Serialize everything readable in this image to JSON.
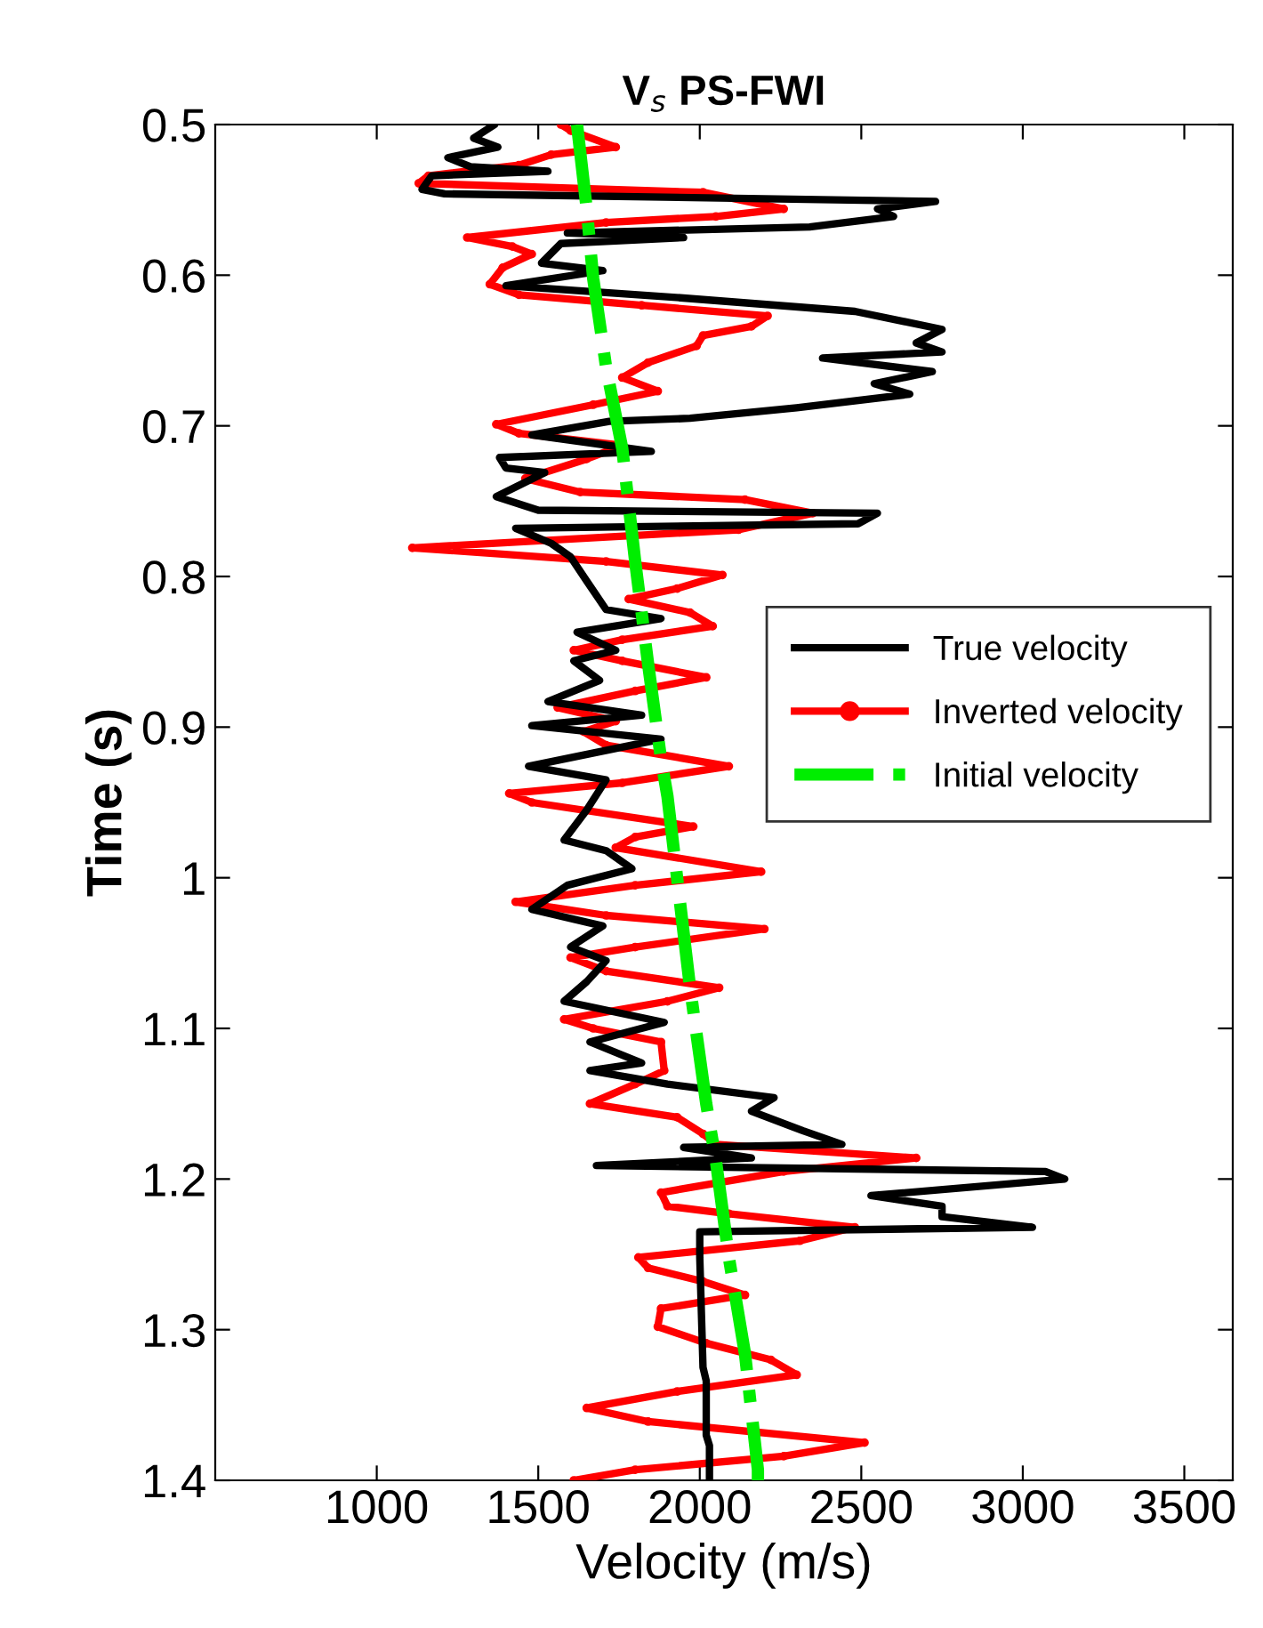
{
  "chart_data": {
    "type": "line",
    "title": "V$_{s}$ PS-FWI",
    "xlabel": "Velocity (m/s)",
    "ylabel": "Time (s)",
    "xlim": [
      500,
      3650
    ],
    "xticks": [
      1000,
      1500,
      2000,
      2500,
      3000,
      3500
    ],
    "ylim": [
      1.4,
      0.5
    ],
    "yticks": [
      0.5,
      0.6,
      0.7,
      0.8,
      0.9,
      1,
      1.1,
      1.2,
      1.3,
      1.4
    ],
    "grid": false,
    "legend": "right",
    "series": [
      {
        "name": "True velocity",
        "color": "#000000",
        "line_style": "solid",
        "marker": "none",
        "x": [
          1365,
          1300,
          1375,
          1220,
          1290,
          1530,
          1170,
          1140,
          1210,
          2730,
          2550,
          2600,
          2340,
          1590,
          1950,
          1570,
          1510,
          1700,
          1400,
          1940,
          2480,
          2750,
          2670,
          2750,
          2380,
          2720,
          2540,
          2650,
          2300,
          1970,
          1720,
          1480,
          1850,
          1380,
          1400,
          1520,
          1370,
          1500,
          2550,
          2490,
          1430,
          1540,
          1600,
          1650,
          1710,
          1880,
          1620,
          1740,
          1610,
          1690,
          1530,
          1820,
          1480,
          1880,
          1470,
          1710,
          1650,
          1580,
          1710,
          1790,
          1590,
          1480,
          1700,
          1600,
          1710,
          1650,
          1580,
          1890,
          1660,
          1820,
          1660,
          1900,
          2230,
          2160,
          2320,
          2440,
          1950,
          2160,
          1680,
          3070,
          3130,
          2530,
          2750,
          2750,
          3030,
          2000,
          2000,
          2010,
          2020,
          2020,
          2030,
          2030
        ],
        "values": [
          0.5,
          0.509,
          0.515,
          0.522,
          0.528,
          0.531,
          0.534,
          0.543,
          0.546,
          0.551,
          0.556,
          0.561,
          0.568,
          0.572,
          0.575,
          0.579,
          0.592,
          0.597,
          0.607,
          0.615,
          0.624,
          0.636,
          0.645,
          0.651,
          0.655,
          0.664,
          0.672,
          0.679,
          0.688,
          0.695,
          0.697,
          0.706,
          0.717,
          0.721,
          0.728,
          0.731,
          0.747,
          0.756,
          0.758,
          0.765,
          0.768,
          0.778,
          0.787,
          0.803,
          0.822,
          0.828,
          0.837,
          0.849,
          0.856,
          0.869,
          0.883,
          0.892,
          0.899,
          0.908,
          0.926,
          0.935,
          0.955,
          0.975,
          0.982,
          0.994,
          1.005,
          1.021,
          1.032,
          1.046,
          1.055,
          1.069,
          1.082,
          1.096,
          1.109,
          1.123,
          1.128,
          1.137,
          1.146,
          1.155,
          1.168,
          1.177,
          1.179,
          1.186,
          1.191,
          1.195,
          1.2,
          1.211,
          1.218,
          1.225,
          1.232,
          1.235,
          1.252,
          1.325,
          1.334,
          1.37,
          1.377,
          1.4
        ]
      },
      {
        "name": "Inverted velocity",
        "color": "#ff0000",
        "line_style": "solid",
        "marker": "circle",
        "x": [
          1570,
          1600,
          1740,
          1540,
          1440,
          1160,
          1130,
          2010,
          2260,
          2050,
          1710,
          1280,
          1420,
          1480,
          1390,
          1350,
          1440,
          1820,
          2210,
          2160,
          2010,
          1990,
          1840,
          1760,
          1870,
          1670,
          1370,
          1440,
          1760,
          1650,
          1460,
          1630,
          2140,
          2350,
          2120,
          1110,
          1710,
          2070,
          1930,
          1780,
          1970,
          2040,
          1760,
          1610,
          1760,
          2020,
          1800,
          1560,
          1740,
          1640,
          1710,
          2090,
          1760,
          1410,
          1480,
          1980,
          1800,
          1740,
          2190,
          1800,
          1430,
          1710,
          2200,
          1800,
          1600,
          1710,
          2060,
          1900,
          1580,
          1670,
          1880,
          1890,
          1800,
          1660,
          1930,
          2010,
          2050,
          2670,
          2260,
          1880,
          1900,
          2090,
          2480,
          2310,
          1810,
          1840,
          2010,
          2140,
          1880,
          1870,
          2020,
          2220,
          2300,
          1930,
          1650,
          1840,
          2510,
          2260,
          1800,
          1610
        ],
        "values": [
          0.5,
          0.504,
          0.515,
          0.52,
          0.527,
          0.534,
          0.539,
          0.545,
          0.556,
          0.561,
          0.565,
          0.575,
          0.581,
          0.586,
          0.595,
          0.606,
          0.613,
          0.62,
          0.627,
          0.634,
          0.64,
          0.647,
          0.658,
          0.668,
          0.677,
          0.686,
          0.699,
          0.705,
          0.713,
          0.722,
          0.735,
          0.744,
          0.749,
          0.758,
          0.769,
          0.781,
          0.79,
          0.799,
          0.808,
          0.815,
          0.824,
          0.833,
          0.842,
          0.849,
          0.856,
          0.867,
          0.876,
          0.887,
          0.896,
          0.903,
          0.912,
          0.926,
          0.937,
          0.944,
          0.95,
          0.966,
          0.973,
          0.98,
          0.996,
          1.005,
          1.016,
          1.025,
          1.034,
          1.046,
          1.053,
          1.062,
          1.073,
          1.082,
          1.094,
          1.1,
          1.109,
          1.128,
          1.137,
          1.15,
          1.159,
          1.17,
          1.177,
          1.186,
          1.195,
          1.209,
          1.218,
          1.223,
          1.232,
          1.241,
          1.252,
          1.259,
          1.268,
          1.277,
          1.286,
          1.298,
          1.309,
          1.32,
          1.33,
          1.341,
          1.352,
          1.361,
          1.375,
          1.384,
          1.393,
          1.4
        ]
      },
      {
        "name": "Initial velocity",
        "color": "#00ee00",
        "line_style": "dashdot",
        "marker": "none",
        "x": [
          1620,
          1650,
          1670,
          1710,
          1760,
          1800,
          1840,
          1880,
          1900,
          1970,
          2020,
          2050,
          2090,
          2140,
          2180,
          2180
        ],
        "values": [
          0.5,
          0.556,
          0.602,
          0.661,
          0.715,
          0.79,
          0.858,
          0.921,
          0.946,
          1.073,
          1.15,
          1.188,
          1.252,
          1.316,
          1.393,
          1.4
        ]
      }
    ]
  }
}
